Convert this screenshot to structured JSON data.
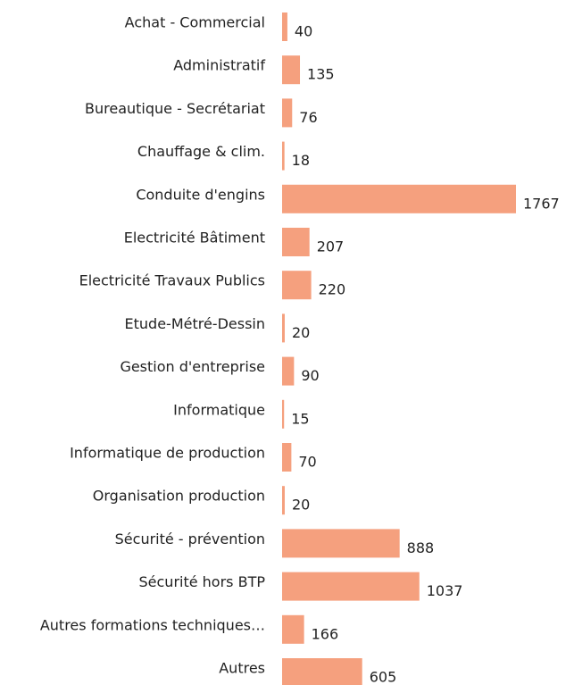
{
  "chart_data": {
    "type": "bar",
    "orientation": "horizontal",
    "color": "#f5a07e",
    "categories": [
      "Achat - Commercial",
      "Administratif",
      "Bureautique - Secrétariat",
      "Chauffage & clim.",
      "Conduite d'engins",
      "Electricité Bâtiment",
      "Electricité Travaux Publics",
      "Etude-Métré-Dessin",
      "Gestion d'entreprise",
      "Informatique",
      "Informatique de production",
      "Organisation production",
      "Sécurité - prévention",
      "Sécurité hors BTP",
      "Autres formations techniques…",
      "Autres"
    ],
    "values": [
      40,
      135,
      76,
      18,
      1767,
      207,
      220,
      20,
      90,
      15,
      70,
      20,
      888,
      1037,
      166,
      605
    ]
  }
}
